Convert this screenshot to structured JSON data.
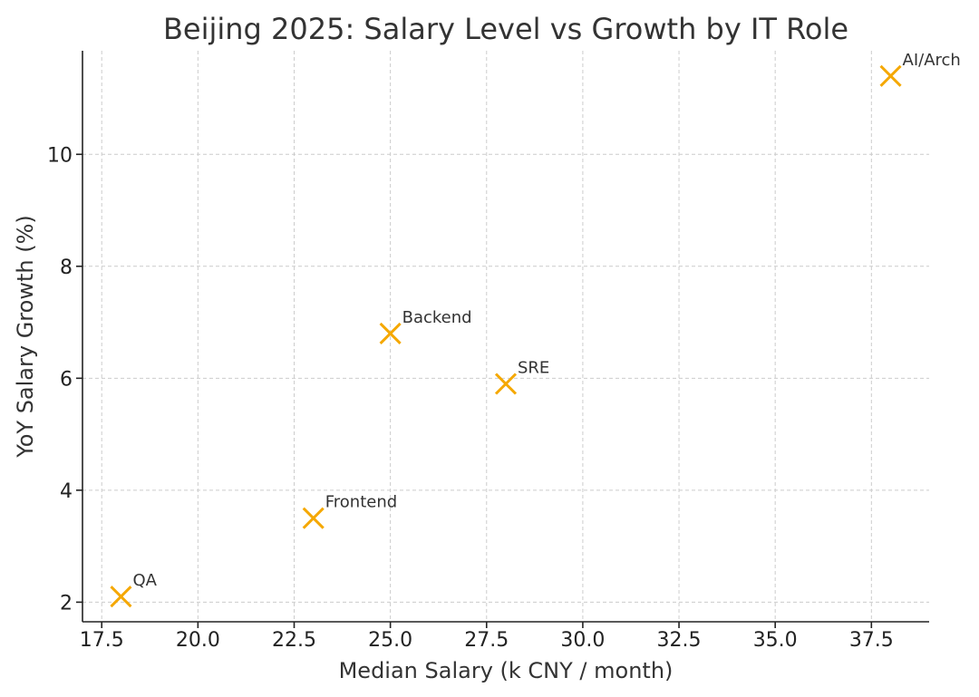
{
  "chart_data": {
    "type": "scatter",
    "title": "Beijing 2025: Salary Level vs Growth by IT Role",
    "xlabel": "Median Salary (k CNY / month)",
    "ylabel": "YoY Salary Growth (%)",
    "xlim": [
      17.0,
      39.0
    ],
    "ylim": [
      1.65,
      11.85
    ],
    "grid": true,
    "marker": "x",
    "color": "#f5a800",
    "xticks": [
      17.5,
      20.0,
      22.5,
      25.0,
      27.5,
      30.0,
      32.5,
      35.0,
      37.5
    ],
    "xtick_labels": [
      "17.5",
      "20.0",
      "22.5",
      "25.0",
      "27.5",
      "30.0",
      "32.5",
      "35.0",
      "37.5"
    ],
    "yticks": [
      2,
      4,
      6,
      8,
      10
    ],
    "ytick_labels": [
      "2",
      "4",
      "6",
      "8",
      "10"
    ],
    "points": [
      {
        "label": "QA",
        "x": 18,
        "y": 2.1
      },
      {
        "label": "Frontend",
        "x": 23,
        "y": 3.5
      },
      {
        "label": "Backend",
        "x": 25,
        "y": 6.8
      },
      {
        "label": "SRE",
        "x": 28,
        "y": 5.9
      },
      {
        "label": "AI/Arch",
        "x": 38,
        "y": 11.4
      }
    ]
  }
}
